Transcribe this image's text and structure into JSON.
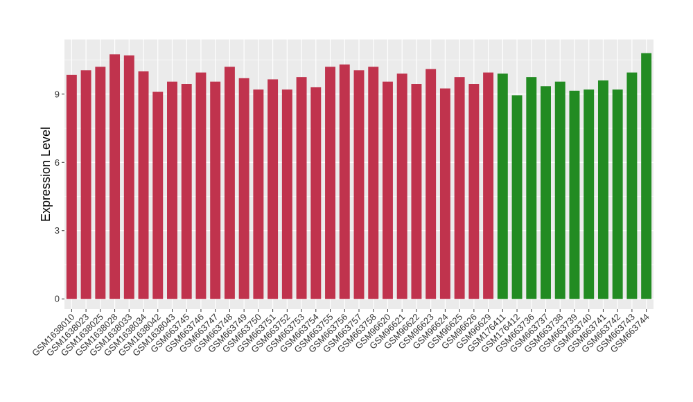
{
  "chart_data": {
    "type": "bar",
    "title": "",
    "xlabel": "",
    "ylabel": "Expression Level",
    "ylim": [
      -0.45,
      11.4
    ],
    "yticks": [
      0,
      3,
      6,
      9
    ],
    "grid": true,
    "legend": "none",
    "colors": {
      "group_a": "#c0334d",
      "group_b": "#228b22",
      "panel": "#ebebeb",
      "grid": "#ffffff"
    },
    "categories": [
      "GSM1638010",
      "GSM1638023",
      "GSM1638025",
      "GSM1638028",
      "GSM1638033",
      "GSM1638034",
      "GSM1638042",
      "GSM1638043",
      "GSM663745",
      "GSM663746",
      "GSM663747",
      "GSM663748",
      "GSM663749",
      "GSM663750",
      "GSM663751",
      "GSM663752",
      "GSM663753",
      "GSM663754",
      "GSM663755",
      "GSM663756",
      "GSM663757",
      "GSM663758",
      "GSM96620",
      "GSM96621",
      "GSM96622",
      "GSM96623",
      "GSM96624",
      "GSM96625",
      "GSM96626",
      "GSM96629",
      "GSM176411",
      "GSM176412",
      "GSM663736",
      "GSM663737",
      "GSM663738",
      "GSM663739",
      "GSM663740",
      "GSM663741",
      "GSM663742",
      "GSM663743",
      "GSM663744"
    ],
    "values": [
      9.85,
      10.05,
      10.2,
      10.75,
      10.7,
      10.0,
      9.1,
      9.55,
      9.45,
      9.95,
      9.55,
      10.2,
      9.7,
      9.2,
      9.65,
      9.2,
      9.75,
      9.3,
      10.2,
      10.3,
      10.05,
      10.2,
      9.55,
      9.9,
      9.45,
      10.1,
      9.25,
      9.75,
      9.45,
      9.95,
      9.9,
      8.95,
      9.75,
      9.35,
      9.55,
      9.15,
      9.2,
      9.6,
      9.2,
      9.95,
      10.8
    ],
    "groups": [
      "a",
      "a",
      "a",
      "a",
      "a",
      "a",
      "a",
      "a",
      "a",
      "a",
      "a",
      "a",
      "a",
      "a",
      "a",
      "a",
      "a",
      "a",
      "a",
      "a",
      "a",
      "a",
      "a",
      "a",
      "a",
      "a",
      "a",
      "a",
      "a",
      "a",
      "b",
      "b",
      "b",
      "b",
      "b",
      "b",
      "b",
      "b",
      "b",
      "b",
      "b"
    ]
  }
}
